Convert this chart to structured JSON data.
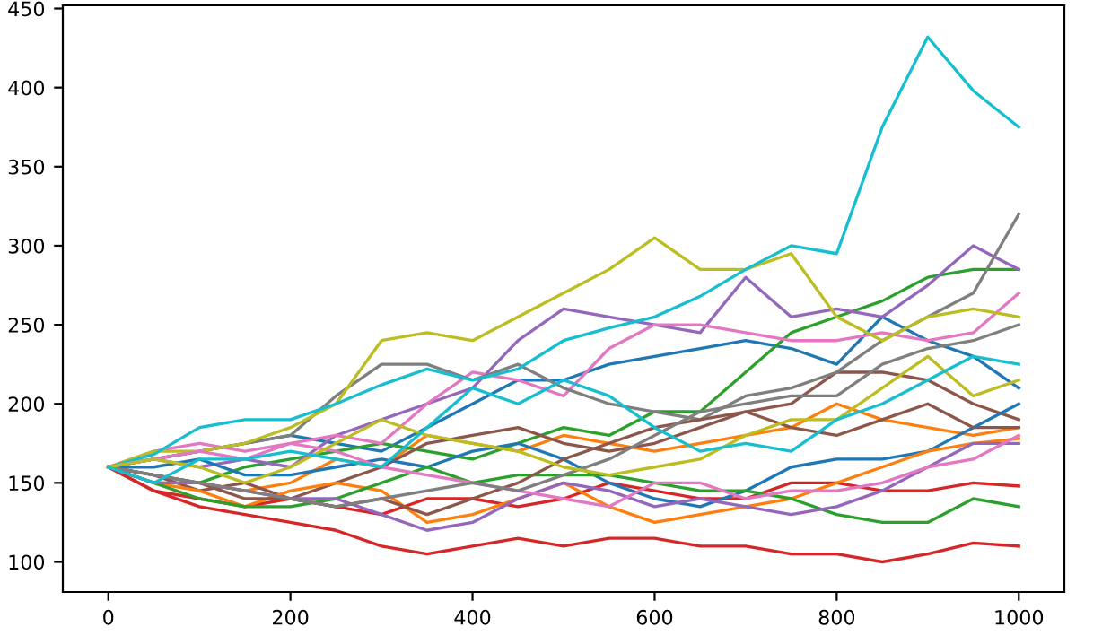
{
  "chart_data": {
    "type": "line",
    "x": [
      0,
      50,
      100,
      150,
      200,
      250,
      300,
      350,
      400,
      450,
      500,
      550,
      600,
      650,
      700,
      750,
      800,
      850,
      900,
      950,
      1000
    ],
    "xlim": [
      -50,
      1050
    ],
    "ylim": [
      81,
      452
    ],
    "xticks": [
      0,
      200,
      400,
      600,
      800,
      1000
    ],
    "yticks": [
      100,
      150,
      200,
      250,
      300,
      350,
      400,
      450
    ],
    "grid": false,
    "legend": false,
    "series": [
      {
        "color": "#1f77b4",
        "values": [
          160,
          165,
          170,
          175,
          180,
          175,
          170,
          185,
          200,
          215,
          215,
          225,
          230,
          235,
          240,
          235,
          225,
          255,
          240,
          230,
          210
        ]
      },
      {
        "color": "#ff7f0e",
        "values": [
          160,
          150,
          150,
          145,
          150,
          165,
          160,
          180,
          175,
          170,
          180,
          175,
          170,
          175,
          180,
          185,
          200,
          190,
          185,
          180,
          185
        ]
      },
      {
        "color": "#2ca02c",
        "values": [
          160,
          155,
          150,
          160,
          165,
          170,
          175,
          170,
          165,
          175,
          185,
          180,
          195,
          195,
          220,
          245,
          255,
          265,
          280,
          285,
          285
        ]
      },
      {
        "color": "#d62728",
        "values": [
          160,
          145,
          140,
          135,
          140,
          135,
          130,
          140,
          140,
          135,
          140,
          150,
          145,
          140,
          140,
          150,
          150,
          145,
          145,
          150,
          148
        ]
      },
      {
        "color": "#9467bd",
        "values": [
          160,
          165,
          160,
          165,
          160,
          180,
          190,
          200,
          210,
          240,
          260,
          255,
          250,
          245,
          280,
          255,
          260,
          255,
          275,
          300,
          285
        ]
      },
      {
        "color": "#8c564b",
        "values": [
          160,
          155,
          145,
          150,
          140,
          150,
          160,
          175,
          180,
          185,
          175,
          170,
          175,
          185,
          195,
          200,
          220,
          220,
          215,
          200,
          190
        ]
      },
      {
        "color": "#e377c2",
        "values": [
          160,
          170,
          175,
          170,
          175,
          180,
          175,
          200,
          220,
          215,
          205,
          235,
          250,
          250,
          245,
          240,
          240,
          245,
          240,
          245,
          270
        ]
      },
      {
        "color": "#7f7f7f",
        "values": [
          160,
          165,
          170,
          175,
          180,
          205,
          225,
          225,
          215,
          225,
          210,
          200,
          195,
          190,
          205,
          210,
          220,
          240,
          255,
          270,
          320
        ]
      },
      {
        "color": "#bcbd22",
        "values": [
          160,
          170,
          170,
          175,
          185,
          200,
          240,
          245,
          240,
          255,
          270,
          285,
          305,
          285,
          285,
          295,
          255,
          240,
          255,
          260,
          255
        ]
      },
      {
        "color": "#17becf",
        "values": [
          160,
          168,
          185,
          190,
          190,
          200,
          212,
          222,
          215,
          222,
          240,
          248,
          255,
          268,
          285,
          300,
          295,
          375,
          432,
          398,
          375
        ]
      },
      {
        "color": "#1f77b4",
        "values": [
          160,
          160,
          165,
          155,
          155,
          160,
          165,
          160,
          170,
          175,
          165,
          150,
          140,
          135,
          145,
          160,
          165,
          165,
          170,
          185,
          200
        ]
      },
      {
        "color": "#ff7f0e",
        "values": [
          160,
          150,
          145,
          135,
          145,
          150,
          145,
          125,
          130,
          140,
          150,
          135,
          125,
          130,
          135,
          140,
          150,
          160,
          170,
          175,
          178
        ]
      },
      {
        "color": "#2ca02c",
        "values": [
          160,
          150,
          140,
          135,
          135,
          140,
          150,
          160,
          150,
          155,
          155,
          155,
          150,
          145,
          145,
          140,
          130,
          125,
          125,
          140,
          135
        ]
      },
      {
        "color": "#d62728",
        "values": [
          160,
          145,
          135,
          130,
          125,
          120,
          110,
          105,
          110,
          115,
          110,
          115,
          115,
          110,
          110,
          105,
          105,
          100,
          105,
          112,
          110
        ]
      },
      {
        "color": "#9467bd",
        "values": [
          160,
          150,
          150,
          145,
          140,
          140,
          130,
          120,
          125,
          140,
          150,
          145,
          135,
          140,
          135,
          130,
          135,
          145,
          160,
          175,
          175
        ]
      },
      {
        "color": "#8c564b",
        "values": [
          160,
          155,
          150,
          140,
          140,
          135,
          140,
          130,
          140,
          150,
          165,
          175,
          185,
          190,
          195,
          185,
          180,
          190,
          200,
          185,
          185
        ]
      },
      {
        "color": "#e377c2",
        "values": [
          160,
          165,
          170,
          165,
          175,
          170,
          160,
          155,
          150,
          145,
          140,
          135,
          150,
          150,
          140,
          145,
          145,
          150,
          160,
          165,
          180
        ]
      },
      {
        "color": "#7f7f7f",
        "values": [
          160,
          155,
          150,
          145,
          140,
          135,
          140,
          145,
          150,
          145,
          155,
          165,
          180,
          195,
          200,
          205,
          205,
          225,
          235,
          240,
          250
        ]
      },
      {
        "color": "#bcbd22",
        "values": [
          160,
          165,
          160,
          150,
          160,
          175,
          190,
          180,
          175,
          170,
          160,
          155,
          160,
          165,
          180,
          190,
          190,
          210,
          230,
          205,
          215
        ]
      },
      {
        "color": "#17becf",
        "values": [
          160,
          150,
          165,
          165,
          170,
          165,
          160,
          185,
          210,
          200,
          215,
          205,
          185,
          170,
          175,
          170,
          190,
          200,
          215,
          230,
          225
        ]
      }
    ]
  }
}
